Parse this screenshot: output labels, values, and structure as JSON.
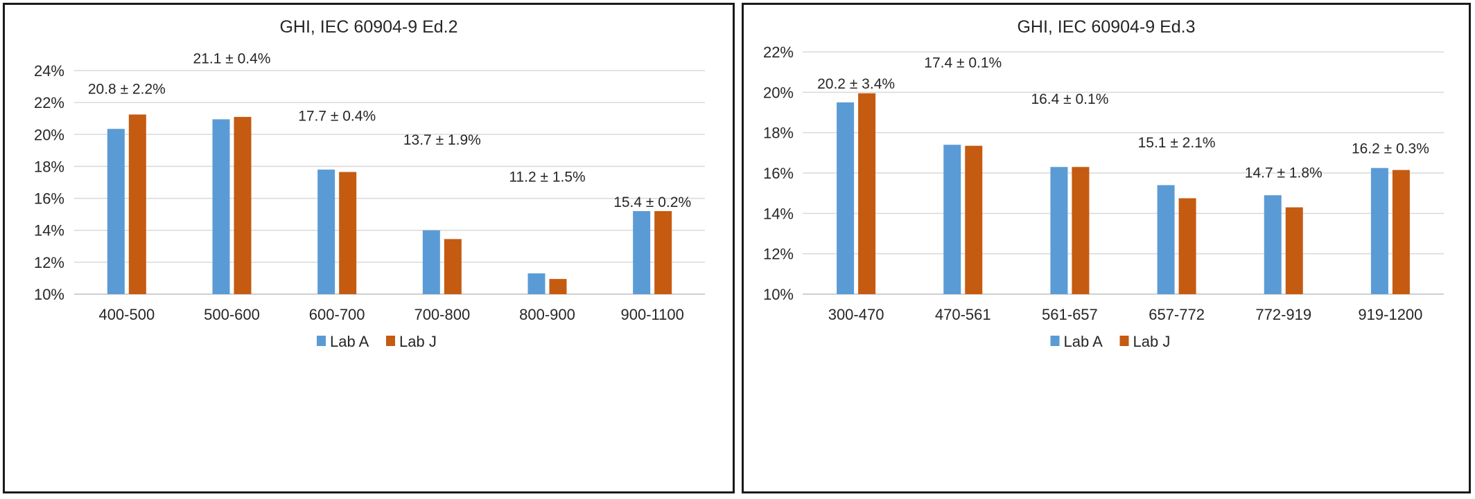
{
  "colors": {
    "lab_a": "#5b9bd5",
    "lab_j": "#c55a11",
    "grid": "#d9d9d9",
    "text": "#262626"
  },
  "chart_data": [
    {
      "type": "bar",
      "title": "GHI, IEC 60904-9 Ed.2",
      "xlabel": "",
      "ylabel": "",
      "categories": [
        "400-500",
        "500-600",
        "600-700",
        "700-800",
        "800-900",
        "900-1100"
      ],
      "ylim": [
        10,
        24
      ],
      "y_ticks": [
        10,
        12,
        14,
        16,
        18,
        20,
        22,
        24
      ],
      "y_tick_labels": [
        "10%",
        "12%",
        "14%",
        "16%",
        "18%",
        "20%",
        "22%",
        "24%"
      ],
      "grid": true,
      "legend_position": "bottom",
      "series": [
        {
          "name": "Lab A",
          "color": "#5b9bd5",
          "values": [
            20.35,
            20.95,
            17.8,
            14.0,
            11.3,
            15.2
          ]
        },
        {
          "name": "Lab J",
          "color": "#c55a11",
          "values": [
            21.25,
            21.1,
            17.65,
            13.45,
            10.95,
            15.2
          ]
        }
      ],
      "annotations": [
        "20.8 ± 2.2%",
        "21.1 ± 0.4%",
        "17.7 ± 0.4%",
        "13.7 ± 1.9%",
        "11.2 ± 1.5%",
        "15.4 ± 0.2%"
      ],
      "annotation_values": [
        22.9,
        24.8,
        21.2,
        19.7,
        17.4,
        15.8
      ]
    },
    {
      "type": "bar",
      "title": "GHI, IEC 60904-9 Ed.3",
      "xlabel": "",
      "ylabel": "",
      "categories": [
        "300-470",
        "470-561",
        "561-657",
        "657-772",
        "772-919",
        "919-1200"
      ],
      "ylim": [
        10,
        22
      ],
      "y_ticks": [
        10,
        12,
        14,
        16,
        18,
        20,
        22
      ],
      "y_tick_labels": [
        "10%",
        "12%",
        "14%",
        "16%",
        "18%",
        "20%",
        "22%"
      ],
      "grid": true,
      "legend_position": "bottom",
      "series": [
        {
          "name": "Lab A",
          "color": "#5b9bd5",
          "values": [
            19.5,
            17.4,
            16.3,
            15.4,
            14.9,
            16.25
          ]
        },
        {
          "name": "Lab J",
          "color": "#c55a11",
          "values": [
            19.95,
            17.35,
            16.3,
            14.75,
            14.3,
            16.15
          ]
        }
      ],
      "annotations": [
        "20.2 ± 3.4%",
        "17.4 ± 0.1%",
        "16.4 ± 0.1%",
        "15.1 ± 2.1%",
        "14.7 ± 1.8%",
        "16.2 ± 0.3%"
      ],
      "annotation_values": [
        20.45,
        21.5,
        19.7,
        17.55,
        16.05,
        17.25
      ]
    }
  ]
}
